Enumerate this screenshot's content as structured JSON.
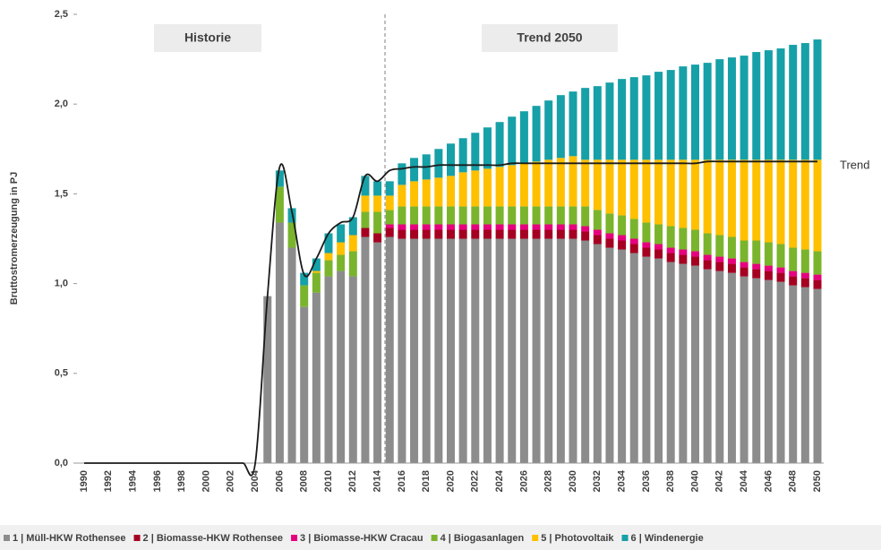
{
  "chart_data": {
    "type": "bar",
    "stacked": true,
    "y_label": "Bruttostromerzeugung in PJ",
    "annotations": [
      "Historie",
      "Trend 2050"
    ],
    "categories": [
      "1990",
      null,
      "1992",
      null,
      "1994",
      null,
      "1996",
      null,
      "1998",
      null,
      "2000",
      null,
      "2002",
      null,
      "2004",
      null,
      "2006",
      null,
      "2008",
      null,
      "2010",
      null,
      "2012",
      null,
      "2014",
      null,
      "2016",
      null,
      "2018",
      null,
      "2020",
      null,
      "2022",
      null,
      "2024",
      null,
      "2026",
      null,
      "2028",
      null,
      "2030",
      null,
      "2032",
      null,
      "2034",
      null,
      "2036",
      null,
      "2038",
      null,
      "2040",
      null,
      "2042",
      null,
      "2044",
      null,
      "2046",
      null,
      "2048",
      null,
      "2050"
    ],
    "ylim": [
      0,
      2.5
    ],
    "yticks": [
      {
        "value": 0,
        "label": "0,0"
      },
      {
        "value": 0.5,
        "label": "0,5"
      },
      {
        "value": 1,
        "label": "1,0"
      },
      {
        "value": 1.5,
        "label": "1,5"
      },
      {
        "value": 2,
        "label": "2,0"
      },
      {
        "value": 2.5,
        "label": "2,5"
      }
    ],
    "series": [
      {
        "name": "1 | Müll-HKW Rothensee",
        "color": "#8c8c8c",
        "values": [
          null,
          null,
          null,
          null,
          null,
          null,
          null,
          null,
          null,
          null,
          null,
          null,
          null,
          null,
          null,
          0.93,
          1.34,
          1.2,
          0.87,
          0.95,
          1.04,
          1.07,
          1.04,
          1.26,
          1.23,
          1.26,
          1.25,
          1.25,
          1.25,
          1.25,
          1.25,
          1.25,
          1.25,
          1.25,
          1.25,
          1.25,
          1.25,
          1.25,
          1.25,
          1.25,
          1.25,
          1.24,
          1.22,
          1.2,
          1.19,
          1.17,
          1.15,
          1.14,
          1.12,
          1.11,
          1.1,
          1.08,
          1.07,
          1.06,
          1.04,
          1.03,
          1.02,
          1.01,
          0.99,
          0.98,
          0.97
        ]
      },
      {
        "name": "2 | Biomasse-HKW Rothensee",
        "color": "#a50021",
        "values": [
          null,
          null,
          null,
          null,
          null,
          null,
          null,
          null,
          null,
          null,
          null,
          null,
          null,
          null,
          null,
          null,
          null,
          null,
          null,
          null,
          null,
          null,
          null,
          0.05,
          0.05,
          0.05,
          0.05,
          0.05,
          0.05,
          0.05,
          0.05,
          0.05,
          0.05,
          0.05,
          0.05,
          0.05,
          0.05,
          0.05,
          0.05,
          0.05,
          0.05,
          0.05,
          0.05,
          0.05,
          0.05,
          0.05,
          0.05,
          0.05,
          0.05,
          0.05,
          0.05,
          0.05,
          0.05,
          0.05,
          0.05,
          0.05,
          0.05,
          0.05,
          0.05,
          0.05,
          0.05
        ]
      },
      {
        "name": "3 | Biomasse-HKW Cracau",
        "color": "#e6007e",
        "values": [
          null,
          null,
          null,
          null,
          null,
          null,
          null,
          null,
          null,
          null,
          null,
          null,
          null,
          null,
          null,
          null,
          null,
          null,
          null,
          null,
          null,
          null,
          null,
          null,
          null,
          0.02,
          0.03,
          0.03,
          0.03,
          0.03,
          0.03,
          0.03,
          0.03,
          0.03,
          0.03,
          0.03,
          0.03,
          0.03,
          0.03,
          0.03,
          0.03,
          0.03,
          0.03,
          0.03,
          0.03,
          0.03,
          0.03,
          0.03,
          0.03,
          0.03,
          0.03,
          0.03,
          0.03,
          0.03,
          0.03,
          0.03,
          0.03,
          0.03,
          0.03,
          0.03,
          0.03
        ]
      },
      {
        "name": "4 | Biogasanlagen",
        "color": "#7ab42d",
        "values": [
          null,
          null,
          null,
          null,
          null,
          null,
          null,
          null,
          null,
          null,
          null,
          null,
          null,
          null,
          null,
          null,
          0.2,
          0.14,
          0.12,
          0.11,
          0.09,
          0.09,
          0.14,
          0.09,
          0.12,
          0.08,
          0.1,
          0.1,
          0.1,
          0.1,
          0.1,
          0.1,
          0.1,
          0.1,
          0.1,
          0.1,
          0.1,
          0.1,
          0.1,
          0.1,
          0.1,
          0.11,
          0.11,
          0.11,
          0.11,
          0.11,
          0.11,
          0.11,
          0.12,
          0.12,
          0.12,
          0.12,
          0.12,
          0.12,
          0.12,
          0.13,
          0.13,
          0.13,
          0.13,
          0.13,
          0.13
        ]
      },
      {
        "name": "5 | Photovoltaik",
        "color": "#ffc000",
        "values": [
          null,
          null,
          null,
          null,
          null,
          null,
          null,
          null,
          null,
          null,
          null,
          null,
          null,
          null,
          null,
          null,
          null,
          null,
          null,
          0.01,
          0.04,
          0.07,
          0.09,
          0.09,
          0.09,
          0.08,
          0.12,
          0.14,
          0.15,
          0.16,
          0.17,
          0.19,
          0.2,
          0.21,
          0.22,
          0.23,
          0.24,
          0.25,
          0.26,
          0.27,
          0.28,
          0.26,
          0.28,
          0.3,
          0.31,
          0.33,
          0.35,
          0.36,
          0.37,
          0.38,
          0.39,
          0.41,
          0.42,
          0.43,
          0.45,
          0.45,
          0.46,
          0.47,
          0.49,
          0.5,
          0.51
        ]
      },
      {
        "name": "6 | Windenergie",
        "color": "#16a0a7",
        "values": [
          null,
          null,
          null,
          null,
          null,
          null,
          null,
          null,
          null,
          null,
          null,
          null,
          null,
          null,
          null,
          null,
          0.09,
          0.08,
          0.07,
          0.07,
          0.11,
          0.1,
          0.1,
          0.11,
          0.08,
          0.08,
          0.12,
          0.13,
          0.14,
          0.16,
          0.18,
          0.19,
          0.21,
          0.23,
          0.25,
          0.27,
          0.29,
          0.31,
          0.33,
          0.35,
          0.36,
          0.4,
          0.41,
          0.43,
          0.45,
          0.46,
          0.47,
          0.49,
          0.5,
          0.52,
          0.53,
          0.54,
          0.56,
          0.57,
          0.58,
          0.6,
          0.61,
          0.62,
          0.64,
          0.65,
          0.67
        ]
      }
    ],
    "trend": {
      "name": "Trend",
      "color": "#1a1a1a",
      "values": [
        0,
        0,
        0,
        0,
        0,
        0,
        0,
        0,
        0,
        0,
        0,
        0,
        0,
        0,
        0,
        0.93,
        1.65,
        1.4,
        1.05,
        1.14,
        1.28,
        1.34,
        1.37,
        1.6,
        1.57,
        1.63,
        1.64,
        1.65,
        1.65,
        1.66,
        1.66,
        1.66,
        1.66,
        1.66,
        1.66,
        1.67,
        1.67,
        1.67,
        1.67,
        1.67,
        1.67,
        1.67,
        1.67,
        1.67,
        1.67,
        1.67,
        1.67,
        1.67,
        1.67,
        1.67,
        1.67,
        1.68,
        1.68,
        1.68,
        1.68,
        1.68,
        1.68,
        1.68,
        1.68,
        1.68,
        1.68
      ]
    }
  }
}
